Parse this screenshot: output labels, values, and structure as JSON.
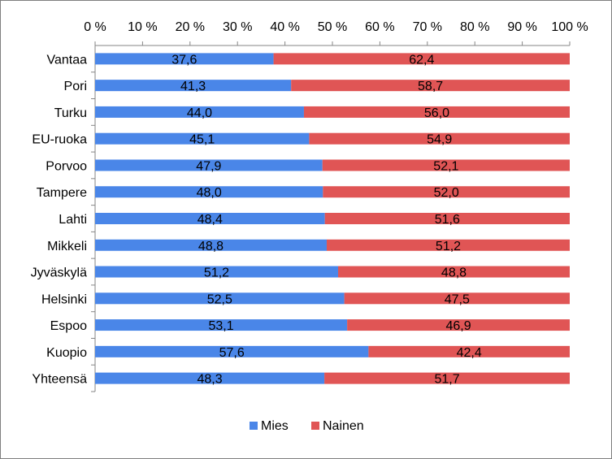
{
  "chart_data": {
    "type": "bar",
    "orientation": "horizontal",
    "stacked": true,
    "percent": true,
    "categories": [
      "Vantaa",
      "Pori",
      "Turku",
      "EU-ruoka",
      "Porvoo",
      "Tampere",
      "Lahti",
      "Mikkeli",
      "Jyväskylä",
      "Helsinki",
      "Espoo",
      "Kuopio",
      "Yhteensä"
    ],
    "series": [
      {
        "name": "Mies",
        "color": "#4a86e8",
        "values": [
          37.6,
          41.3,
          44.0,
          45.1,
          47.9,
          48.0,
          48.4,
          48.8,
          51.2,
          52.5,
          53.1,
          57.6,
          48.3
        ],
        "labels": [
          "37,6",
          "41,3",
          "44,0",
          "45,1",
          "47,9",
          "48,0",
          "48,4",
          "48,8",
          "51,2",
          "52,5",
          "53,1",
          "57,6",
          "48,3"
        ]
      },
      {
        "name": "Nainen",
        "color": "#e05555",
        "values": [
          62.4,
          58.7,
          56.0,
          54.9,
          52.1,
          52.0,
          51.6,
          51.2,
          48.8,
          47.5,
          46.9,
          42.4,
          51.7
        ],
        "labels": [
          "62,4",
          "58,7",
          "56,0",
          "54,9",
          "52,1",
          "52,0",
          "51,6",
          "51,2",
          "48,8",
          "47,5",
          "46,9",
          "42,4",
          "51,7"
        ]
      }
    ],
    "xlim": [
      0,
      100
    ],
    "xticks": [
      "0 %",
      "10 %",
      "20 %",
      "30 %",
      "40 %",
      "50 %",
      "60 %",
      "70 %",
      "80 %",
      "90 %",
      "100 %"
    ],
    "legend_position": "bottom",
    "grid": false
  }
}
